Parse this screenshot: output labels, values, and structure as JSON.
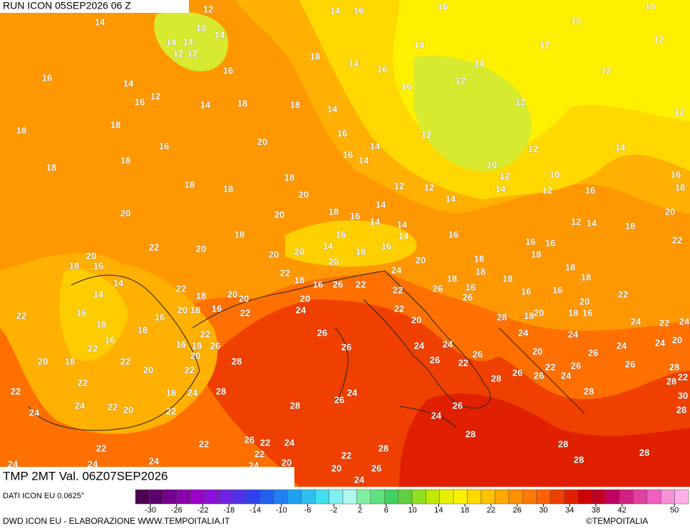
{
  "header": {
    "run": "RUN ICON 05SEP2026 06 Z"
  },
  "map": {
    "labels": [
      12,
      14,
      16,
      16,
      10,
      14,
      10,
      14,
      14,
      14,
      12,
      12,
      10,
      12,
      12,
      14,
      18,
      14,
      16,
      16,
      16,
      14,
      12,
      16,
      14,
      16,
      18,
      12,
      14,
      12,
      12,
      12,
      18,
      14,
      18,
      18,
      20,
      16,
      14,
      12,
      12,
      14,
      16,
      16,
      14,
      18,
      18,
      10,
      12,
      10,
      16,
      18,
      18,
      18,
      20,
      12,
      12,
      18,
      14,
      12,
      16,
      14,
      14,
      20,
      20,
      18,
      16,
      20,
      14,
      18,
      12,
      14,
      14,
      18,
      14,
      16,
      16,
      22,
      22,
      20,
      14,
      20,
      16,
      16,
      16,
      18,
      20,
      20,
      18,
      16,
      18,
      18,
      20,
      24,
      20,
      22,
      18,
      18,
      18,
      18,
      14,
      22,
      14,
      18,
      20,
      20,
      16,
      26,
      22,
      26,
      16,
      18,
      16,
      18,
      22,
      22,
      20,
      26,
      16,
      20,
      20,
      18,
      16,
      22,
      22,
      16,
      24,
      22,
      16,
      18,
      20,
      18,
      16,
      28,
      24,
      22,
      24,
      18,
      18,
      26,
      20,
      24,
      24,
      22,
      22,
      16,
      16,
      18,
      26,
      26,
      24,
      24,
      24,
      20,
      20,
      18,
      22,
      20,
      28,
      26,
      20,
      26,
      24,
      26,
      22,
      26,
      28,
      20,
      22,
      22,
      26,
      26,
      24,
      22,
      28,
      26,
      22,
      28,
      22,
      18,
      24,
      28,
      24,
      26,
      28,
      30,
      24,
      22,
      20,
      22,
      28,
      26,
      28,
      24,
      24,
      28,
      26,
      22,
      22,
      24,
      22,
      22,
      28,
      22,
      28,
      28,
      24,
      24,
      20,
      26,
      20,
      24,
      28,
      24,
      24
    ]
  },
  "footer": {
    "title": "TMP 2MT Val. 06Z07SEP2026",
    "source": "DATI ICON EU 0.0625°",
    "credit": "DWD ICON EU - ELABORAZIONE WWW.TEMPOITALIA.IT",
    "brand": "©TEMPOITALIA"
  },
  "legend": {
    "ticks": [
      -30,
      -26,
      -22,
      -18,
      -14,
      -10,
      -6,
      -2,
      2,
      6,
      10,
      14,
      18,
      22,
      26,
      30,
      34,
      38,
      42,
      50
    ],
    "colors": [
      "#4b0050",
      "#5c006e",
      "#73008c",
      "#8a00aa",
      "#9a00c8",
      "#8a10d8",
      "#7020e0",
      "#5030e8",
      "#3040f0",
      "#2060f0",
      "#2080f0",
      "#20a0f0",
      "#30c0f0",
      "#40e0f0",
      "#80f0f0",
      "#b0f8f0",
      "#80f0a0",
      "#60e080",
      "#40d060",
      "#60d040",
      "#90e020",
      "#c0e800",
      "#e8f000",
      "#fff000",
      "#ffd800",
      "#ffc000",
      "#ffa800",
      "#ff9000",
      "#ff7800",
      "#ff6000",
      "#f04000",
      "#e02000",
      "#d00000",
      "#c00020",
      "#c00060",
      "#d02080",
      "#e040a0",
      "#f060c0",
      "#f890d8",
      "#ffb0e8"
    ]
  }
}
